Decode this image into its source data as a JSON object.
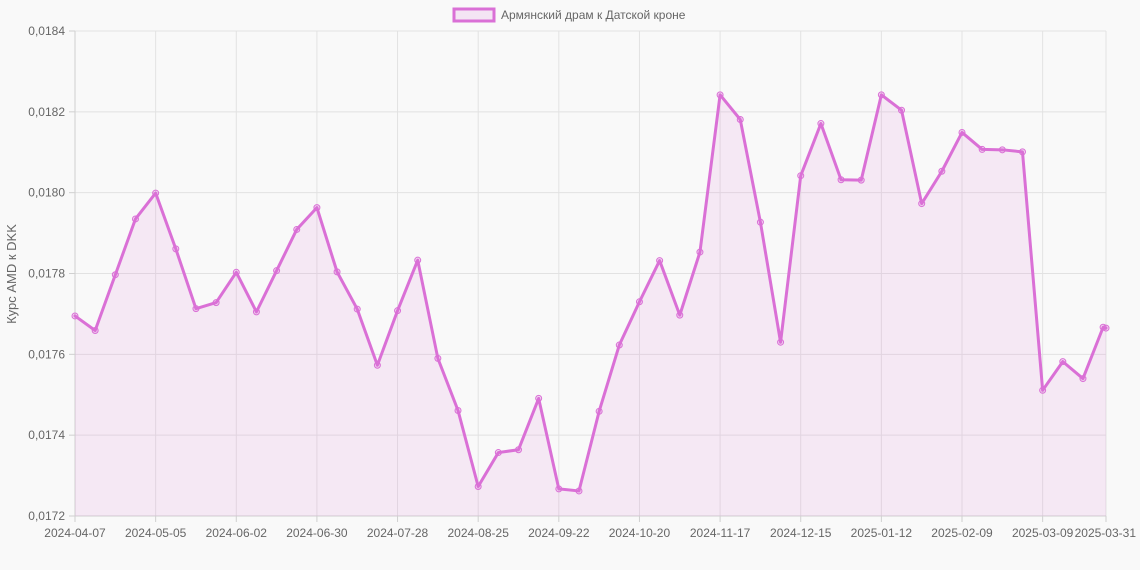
{
  "chart_data": {
    "type": "line",
    "ylabel": "Курс AMD к DKK",
    "ylim": [
      0.0172,
      0.0184
    ],
    "y_ticks": [
      "0,0172",
      "0,0174",
      "0,0176",
      "0,0178",
      "0,0180",
      "0,0182",
      "0,0184"
    ],
    "x_tick_labels": [
      "2024-04-07",
      "2024-05-05",
      "2024-06-02",
      "2024-06-30",
      "2024-07-28",
      "2024-08-25",
      "2024-09-22",
      "2024-10-20",
      "2024-11-17",
      "2024-12-15",
      "2025-01-12",
      "2025-02-09",
      "2025-03-09",
      "2025-03-31"
    ],
    "x": [
      "2024-04-07",
      "2024-04-14",
      "2024-04-21",
      "2024-04-28",
      "2024-05-05",
      "2024-05-12",
      "2024-05-19",
      "2024-05-26",
      "2024-06-02",
      "2024-06-09",
      "2024-06-16",
      "2024-06-23",
      "2024-06-30",
      "2024-07-07",
      "2024-07-14",
      "2024-07-21",
      "2024-07-28",
      "2024-08-04",
      "2024-08-11",
      "2024-08-18",
      "2024-08-25",
      "2024-09-01",
      "2024-09-08",
      "2024-09-15",
      "2024-09-22",
      "2024-09-29",
      "2024-10-06",
      "2024-10-13",
      "2024-10-20",
      "2024-10-27",
      "2024-11-03",
      "2024-11-10",
      "2024-11-17",
      "2024-11-24",
      "2024-12-01",
      "2024-12-08",
      "2024-12-15",
      "2024-12-22",
      "2024-12-29",
      "2025-01-05",
      "2025-01-12",
      "2025-01-19",
      "2025-01-26",
      "2025-02-02",
      "2025-02-09",
      "2025-02-16",
      "2025-02-23",
      "2025-03-02",
      "2025-03-09",
      "2025-03-16",
      "2025-03-23",
      "2025-03-30",
      "2025-03-31"
    ],
    "series": [
      {
        "name": "Армянский драм к Датской кроне",
        "color": "#da70d6",
        "values": [
          0.017695,
          0.017659,
          0.017797,
          0.017935,
          0.017999,
          0.017861,
          0.017713,
          0.017728,
          0.017803,
          0.017705,
          0.017807,
          0.017909,
          0.017963,
          0.017804,
          0.017712,
          0.017573,
          0.017708,
          0.017833,
          0.01759,
          0.017461,
          0.017273,
          0.017357,
          0.017364,
          0.017491,
          0.017267,
          0.017262,
          0.017459,
          0.017623,
          0.01773,
          0.017832,
          0.017697,
          0.017853,
          0.018242,
          0.018181,
          0.017927,
          0.01763,
          0.018042,
          0.018171,
          0.018032,
          0.018031,
          0.018242,
          0.018204,
          0.017973,
          0.018053,
          0.018149,
          0.018107,
          0.018106,
          0.018101,
          0.017511,
          0.017582,
          0.01754,
          0.017667,
          0.017665
        ]
      }
    ],
    "grid": true,
    "legend_position": "top-center"
  }
}
